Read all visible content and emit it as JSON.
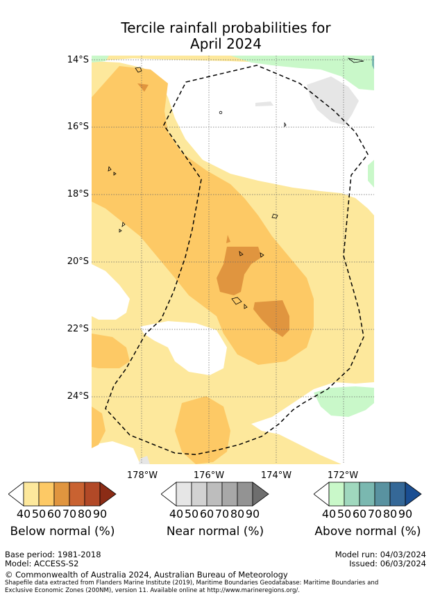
{
  "title": {
    "line1": "Tercile rainfall probabilities for",
    "line2": "April 2024"
  },
  "map": {
    "lat_labels": [
      "14°S",
      "16°S",
      "18°S",
      "20°S",
      "22°S",
      "24°S"
    ],
    "lon_labels": [
      "178°W",
      "176°W",
      "174°W",
      "172°W"
    ],
    "colors": {
      "below": [
        "#fde89c",
        "#fdc965",
        "#e0953f",
        "#c96231",
        "#b24927",
        "#8b2c16"
      ],
      "near": [
        "#e6e6e6",
        "#d2d2d2",
        "#bdbdbd",
        "#a8a8a8",
        "#939393",
        "#6e6e6e"
      ],
      "above": [
        "#c9f8c9",
        "#a0d8be",
        "#7ab8b0",
        "#5992a0",
        "#356897",
        "#1a4e92"
      ]
    }
  },
  "legend": {
    "ticks": [
      "40",
      "50",
      "60",
      "70",
      "80",
      "90"
    ],
    "below_label": "Below normal (%)",
    "near_label": "Near normal (%)",
    "above_label": "Above normal (%)"
  },
  "footer": {
    "base_period": "Base period: 1981-2018",
    "model": "Model: ACCESS-S2",
    "model_run": "Model run: 04/03/2024",
    "issued": "Issued: 06/03/2024",
    "copyright": "© Commonwealth of Australia 2024, Australian Bureau of Meteorology",
    "source_line1": "Shapefile data extracted from Flanders Marine Institute (2019), Maritime Boundaries Geodatabase: Maritime Boundaries and",
    "source_line2": "Exclusive Economic Zones (200NM), version 11. Available online at http://www.marineregions.org/."
  }
}
